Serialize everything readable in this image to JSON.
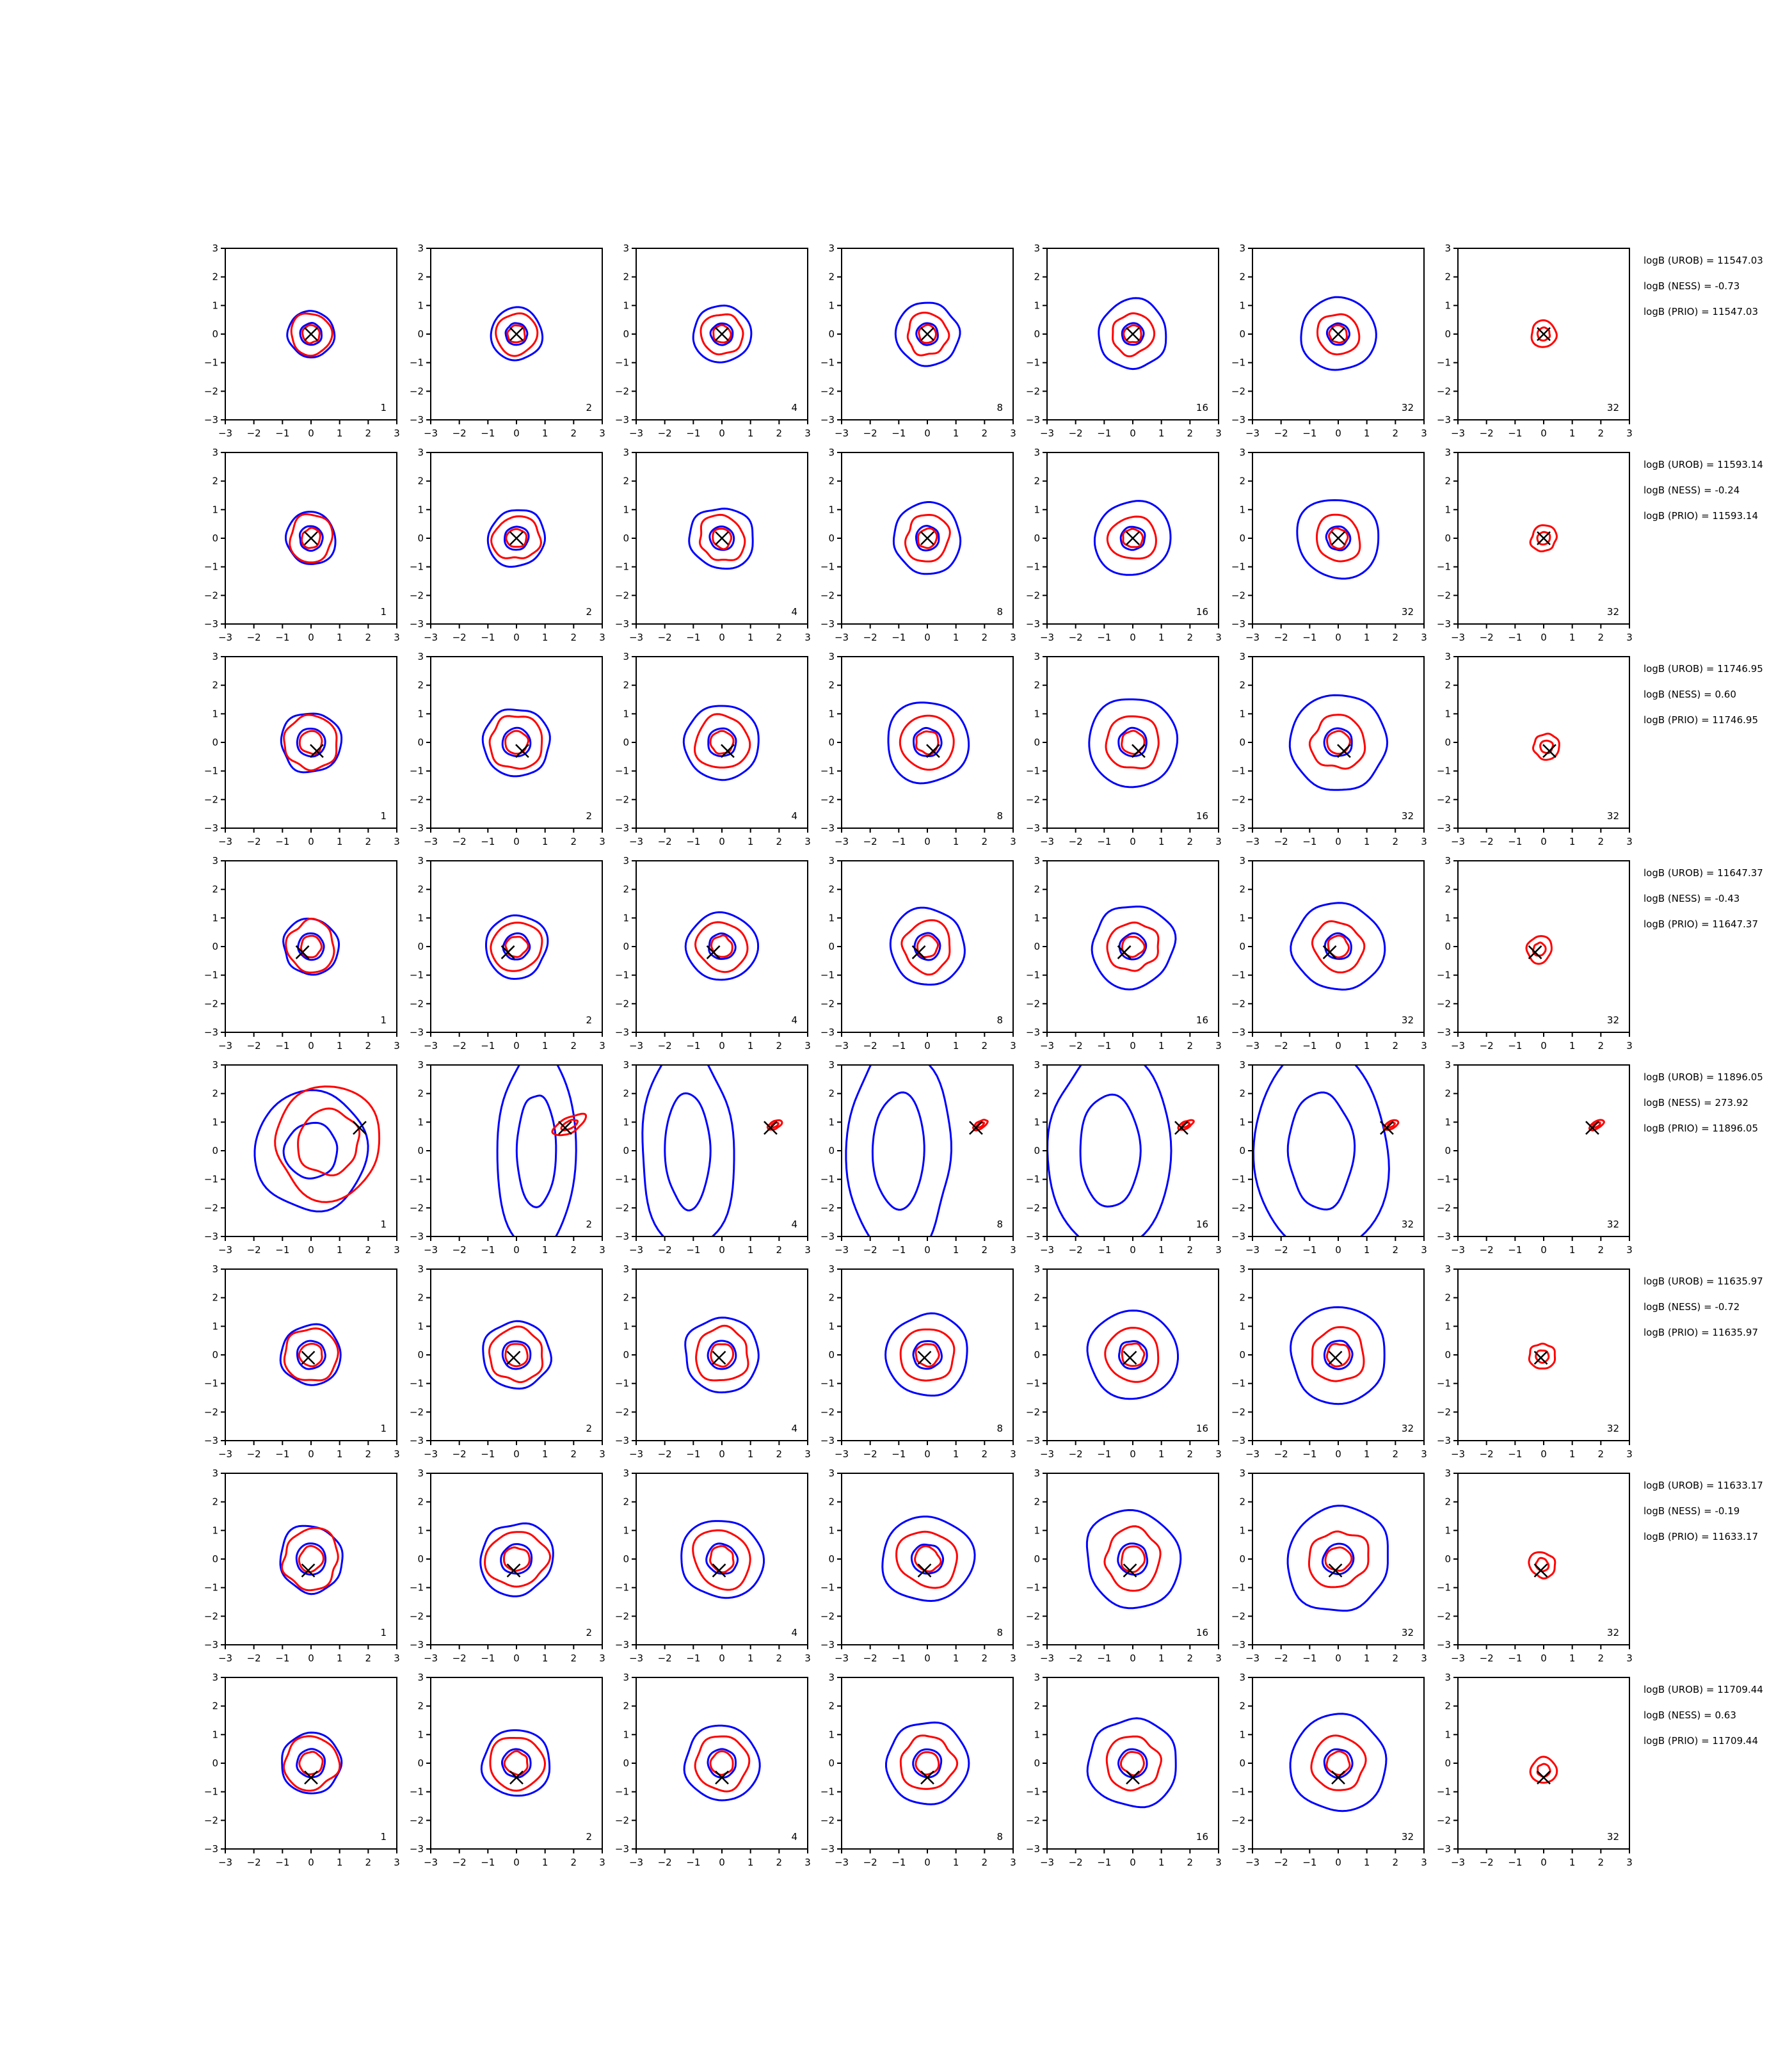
{
  "chart_data": {
    "type": "contour-grid",
    "xlim": [
      -3,
      3
    ],
    "ylim": [
      -3,
      3
    ],
    "xticks": [
      "−3",
      "−2",
      "−1",
      "0",
      "1",
      "2",
      "3"
    ],
    "yticks": [
      "−3",
      "−2",
      "−1",
      "0",
      "1",
      "2",
      "3"
    ],
    "columns": [
      "1",
      "2",
      "4",
      "8",
      "16",
      "32",
      "32"
    ],
    "colors": {
      "blue": "#0000ff",
      "red": "#ff0000",
      "marker": "#000000"
    },
    "rows": [
      {
        "marker": [
          0.0,
          0.0
        ],
        "spread": 1.0,
        "logB": [
          "logB (UROB) = 11547.03",
          "logB (NESS) = -0.73",
          "logB (PRIO) = 11547.03"
        ]
      },
      {
        "marker": [
          0.0,
          0.0
        ],
        "spread": 1.1,
        "logB": [
          "logB (UROB) = 11593.14",
          "logB (NESS) = -0.24",
          "logB (PRIO) = 11593.14"
        ]
      },
      {
        "marker": [
          0.2,
          -0.3
        ],
        "spread": 1.3,
        "logB": [
          "logB (UROB) = 11746.95",
          "logB (NESS) = 0.60",
          "logB (PRIO) = 11746.95"
        ]
      },
      {
        "marker": [
          -0.3,
          -0.2
        ],
        "spread": 1.2,
        "logB": [
          "logB (UROB) = 11647.37",
          "logB (NESS) = -0.43",
          "logB (PRIO) = 11647.37"
        ]
      },
      {
        "marker": [
          1.7,
          0.8
        ],
        "spread": 2.5,
        "logB": [
          "logB (UROB) = 11896.05",
          "logB (NESS) = 273.92",
          "logB (PRIO) = 11896.05"
        ]
      },
      {
        "marker": [
          -0.1,
          -0.1
        ],
        "spread": 1.3,
        "logB": [
          "logB (UROB) = 11635.97",
          "logB (NESS) = -0.72",
          "logB (PRIO) = 11635.97"
        ]
      },
      {
        "marker": [
          -0.1,
          -0.4
        ],
        "spread": 1.4,
        "logB": [
          "logB (UROB) = 11633.17",
          "logB (NESS) = -0.19",
          "logB (PRIO) = 11633.17"
        ]
      },
      {
        "marker": [
          0.0,
          -0.5
        ],
        "spread": 1.3,
        "logB": [
          "logB (UROB) = 11709.44",
          "logB (NESS) = 0.63",
          "logB (PRIO) = 11709.44"
        ]
      }
    ]
  }
}
